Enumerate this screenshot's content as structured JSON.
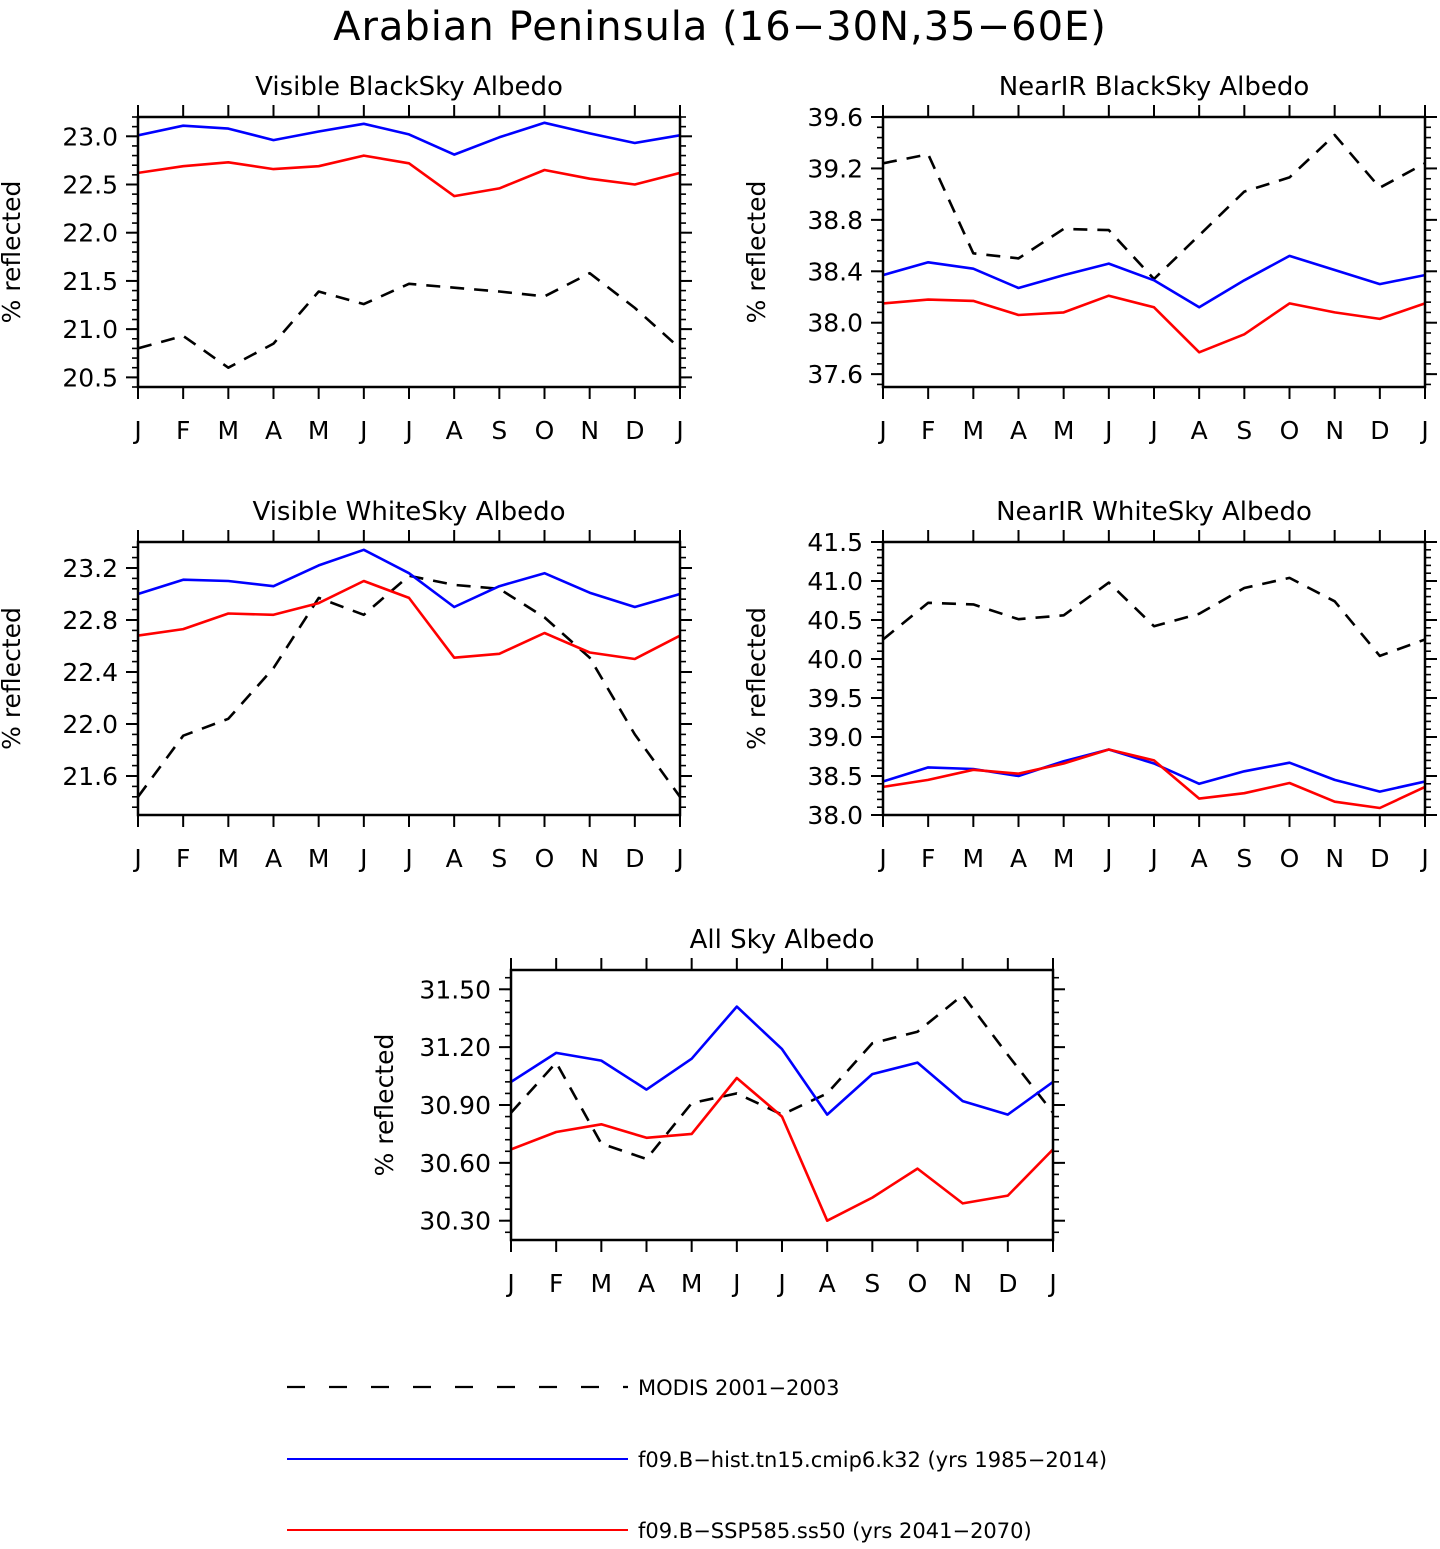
{
  "figure": {
    "title": "Arabian Peninsula (16−30N,35−60E)",
    "months": [
      "J",
      "F",
      "M",
      "A",
      "M",
      "J",
      "J",
      "A",
      "S",
      "O",
      "N",
      "D",
      "J"
    ]
  },
  "legend": [
    {
      "label": "MODIS 2001−2003",
      "color": "#000000",
      "style": "dashed"
    },
    {
      "label": "f09.B−hist.tn15.cmip6.k32 (yrs 1985−2014)",
      "color": "#0000ff",
      "style": "solid"
    },
    {
      "label": "f09.B−SSP585.ss50 (yrs 2041−2070)",
      "color": "#ff0000",
      "style": "solid"
    }
  ],
  "chart_data": [
    {
      "type": "line",
      "title": "Visible BlackSky Albedo",
      "ylabel": "% reflected",
      "ylim": [
        20.4,
        23.2
      ],
      "yticks": [
        20.5,
        21.0,
        21.5,
        22.0,
        22.5,
        23.0
      ],
      "ytick_labels": [
        "20.5",
        "21.0",
        "21.5",
        "22.0",
        "22.5",
        "23.0"
      ],
      "x": [
        "J",
        "F",
        "M",
        "A",
        "M",
        "J",
        "J",
        "A",
        "S",
        "O",
        "N",
        "D",
        "J"
      ],
      "series": [
        {
          "name": "MODIS 2001−2003",
          "color": "#000000",
          "dashed": true,
          "values": [
            20.8,
            20.93,
            20.6,
            20.85,
            21.39,
            21.26,
            21.47,
            21.43,
            21.39,
            21.34,
            21.58,
            21.22,
            20.8
          ]
        },
        {
          "name": "f09.B−hist.tn15.cmip6.k32 (yrs 1985−2014)",
          "color": "#0000ff",
          "dashed": false,
          "values": [
            23.01,
            23.11,
            23.08,
            22.96,
            23.05,
            23.13,
            23.02,
            22.81,
            22.99,
            23.14,
            23.03,
            22.93,
            23.01
          ]
        },
        {
          "name": "f09.B−SSP585.ss50 (yrs 2041−2070)",
          "color": "#ff0000",
          "dashed": false,
          "values": [
            22.62,
            22.69,
            22.73,
            22.66,
            22.69,
            22.8,
            22.72,
            22.38,
            22.46,
            22.65,
            22.56,
            22.5,
            22.62
          ]
        }
      ]
    },
    {
      "type": "line",
      "title": "NearIR BlackSky Albedo",
      "ylabel": "% reflected",
      "ylim": [
        37.5,
        39.6
      ],
      "yticks": [
        37.6,
        38.0,
        38.4,
        38.8,
        39.2,
        39.6
      ],
      "ytick_labels": [
        "37.6",
        "38.0",
        "38.4",
        "38.8",
        "39.2",
        "39.6"
      ],
      "x": [
        "J",
        "F",
        "M",
        "A",
        "M",
        "J",
        "J",
        "A",
        "S",
        "O",
        "N",
        "D",
        "J"
      ],
      "series": [
        {
          "name": "MODIS 2001−2003",
          "color": "#000000",
          "dashed": true,
          "values": [
            39.24,
            39.31,
            38.54,
            38.5,
            38.73,
            38.72,
            38.34,
            38.68,
            39.02,
            39.13,
            39.46,
            39.05,
            39.24
          ]
        },
        {
          "name": "f09.B−hist.tn15.cmip6.k32 (yrs 1985−2014)",
          "color": "#0000ff",
          "dashed": false,
          "values": [
            38.37,
            38.47,
            38.42,
            38.27,
            38.37,
            38.46,
            38.33,
            38.12,
            38.33,
            38.52,
            38.41,
            38.3,
            38.37
          ]
        },
        {
          "name": "f09.B−SSP585.ss50 (yrs 2041−2070)",
          "color": "#ff0000",
          "dashed": false,
          "values": [
            38.15,
            38.18,
            38.17,
            38.06,
            38.08,
            38.21,
            38.12,
            37.77,
            37.91,
            38.15,
            38.08,
            38.03,
            38.15
          ]
        }
      ]
    },
    {
      "type": "line",
      "title": "Visible WhiteSky Albedo",
      "ylabel": "% reflected",
      "ylim": [
        21.3,
        23.4
      ],
      "yticks": [
        21.6,
        22.0,
        22.4,
        22.8,
        23.2
      ],
      "ytick_labels": [
        "21.6",
        "22.0",
        "22.4",
        "22.8",
        "23.2"
      ],
      "x": [
        "J",
        "F",
        "M",
        "A",
        "M",
        "J",
        "J",
        "A",
        "S",
        "O",
        "N",
        "D",
        "J"
      ],
      "series": [
        {
          "name": "MODIS 2001−2003",
          "color": "#000000",
          "dashed": true,
          "values": [
            21.44,
            21.91,
            22.04,
            22.43,
            22.97,
            22.84,
            23.14,
            23.07,
            23.04,
            22.82,
            22.51,
            21.92,
            21.44
          ]
        },
        {
          "name": "f09.B−hist.tn15.cmip6.k32 (yrs 1985−2014)",
          "color": "#0000ff",
          "dashed": false,
          "values": [
            23.0,
            23.11,
            23.1,
            23.06,
            23.22,
            23.34,
            23.16,
            22.9,
            23.06,
            23.16,
            23.01,
            22.9,
            23.0
          ]
        },
        {
          "name": "f09.B−SSP585.ss50 (yrs 2041−2070)",
          "color": "#ff0000",
          "dashed": false,
          "values": [
            22.68,
            22.73,
            22.85,
            22.84,
            22.93,
            23.1,
            22.97,
            22.51,
            22.54,
            22.7,
            22.55,
            22.5,
            22.68
          ]
        }
      ]
    },
    {
      "type": "line",
      "title": "NearIR WhiteSky Albedo",
      "ylabel": "% reflected",
      "ylim": [
        38.0,
        41.5
      ],
      "yticks": [
        38.0,
        38.5,
        39.0,
        39.5,
        40.0,
        40.5,
        41.0,
        41.5
      ],
      "ytick_labels": [
        "38.0",
        "38.5",
        "39.0",
        "39.5",
        "40.0",
        "40.5",
        "41.0",
        "41.5"
      ],
      "x": [
        "J",
        "F",
        "M",
        "A",
        "M",
        "J",
        "J",
        "A",
        "S",
        "O",
        "N",
        "D",
        "J"
      ],
      "series": [
        {
          "name": "MODIS 2001−2003",
          "color": "#000000",
          "dashed": true,
          "values": [
            40.25,
            40.72,
            40.7,
            40.51,
            40.56,
            40.98,
            40.42,
            40.58,
            40.91,
            41.04,
            40.74,
            40.04,
            40.25
          ]
        },
        {
          "name": "f09.B−hist.tn15.cmip6.k32 (yrs 1985−2014)",
          "color": "#0000ff",
          "dashed": false,
          "values": [
            38.43,
            38.61,
            38.59,
            38.5,
            38.69,
            38.84,
            38.66,
            38.4,
            38.56,
            38.67,
            38.45,
            38.3,
            38.43
          ]
        },
        {
          "name": "f09.B−SSP585.ss50 (yrs 2041−2070)",
          "color": "#ff0000",
          "dashed": false,
          "values": [
            38.36,
            38.45,
            38.58,
            38.53,
            38.66,
            38.84,
            38.7,
            38.21,
            38.28,
            38.41,
            38.17,
            38.09,
            38.36
          ]
        }
      ]
    },
    {
      "type": "line",
      "title": "All Sky Albedo",
      "ylabel": "% reflected",
      "ylim": [
        30.2,
        31.6
      ],
      "yticks": [
        30.3,
        30.6,
        30.9,
        31.2,
        31.5
      ],
      "ytick_labels": [
        "30.30",
        "30.60",
        "30.90",
        "31.20",
        "31.50"
      ],
      "x": [
        "J",
        "F",
        "M",
        "A",
        "M",
        "J",
        "J",
        "A",
        "S",
        "O",
        "N",
        "D",
        "J"
      ],
      "series": [
        {
          "name": "MODIS 2001−2003",
          "color": "#000000",
          "dashed": true,
          "values": [
            30.86,
            31.12,
            30.7,
            30.62,
            30.91,
            30.96,
            30.85,
            30.96,
            31.22,
            31.28,
            31.47,
            31.16,
            30.86
          ]
        },
        {
          "name": "f09.B−hist.tn15.cmip6.k32 (yrs 1985−2014)",
          "color": "#0000ff",
          "dashed": false,
          "values": [
            31.02,
            31.17,
            31.13,
            30.98,
            31.14,
            31.41,
            31.19,
            30.85,
            31.06,
            31.12,
            30.92,
            30.85,
            31.02
          ]
        },
        {
          "name": "f09.B−SSP585.ss50 (yrs 2041−2070)",
          "color": "#ff0000",
          "dashed": false,
          "values": [
            30.67,
            30.76,
            30.8,
            30.73,
            30.75,
            31.04,
            30.84,
            30.3,
            30.42,
            30.57,
            30.39,
            30.43,
            30.67
          ]
        }
      ]
    }
  ]
}
